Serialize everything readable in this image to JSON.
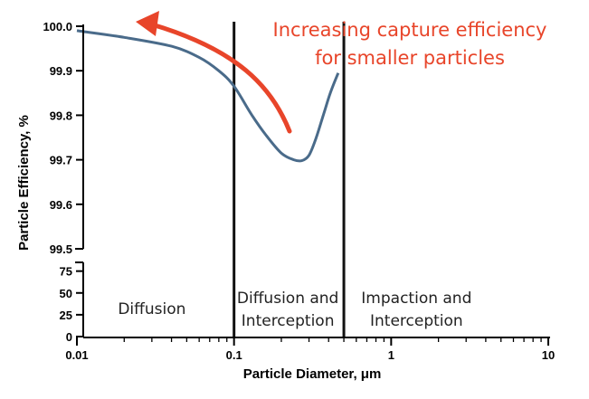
{
  "chart_data": {
    "type": "line",
    "title": "",
    "xlabel": "Particle Diameter, μm",
    "ylabel": "Particle Efficiency, %",
    "x_scale": "log",
    "xlim": [
      0.01,
      10
    ],
    "x_ticks": [
      "0.01",
      "0.1",
      "1",
      "10"
    ],
    "y_ticks_upper": [
      "99.5",
      "99.6",
      "99.7",
      "99.8",
      "99.9",
      "100.0"
    ],
    "y_ticks_lower": [
      "0",
      "25",
      "50",
      "75"
    ],
    "ylim_upper": [
      99.5,
      100.0
    ],
    "ylim_lower": [
      0,
      85
    ],
    "axis_break": true,
    "grid": false,
    "series": [
      {
        "color": "#4a6b8a",
        "x": [
          0.01,
          0.02,
          0.04,
          0.06,
          0.08,
          0.1,
          0.13,
          0.16,
          0.2,
          0.24,
          0.27,
          0.3,
          0.33,
          0.37,
          0.41,
          0.46
        ],
        "y": [
          99.99,
          99.975,
          99.955,
          99.93,
          99.9,
          99.865,
          99.8,
          99.755,
          99.715,
          99.7,
          99.698,
          99.71,
          99.745,
          99.8,
          99.85,
          99.895
        ]
      }
    ],
    "region_boundaries": [
      0.1,
      0.5
    ],
    "regions": [
      {
        "lines": [
          "Diffusion"
        ],
        "x_center": 0.03
      },
      {
        "lines": [
          "Diffusion and",
          "Interception"
        ],
        "x_center": 0.22
      },
      {
        "lines": [
          "Impaction and",
          "Interception"
        ],
        "x_center": 1.45
      }
    ],
    "annotation": {
      "lines": [
        "Increasing capture efficiency",
        "for smaller particles"
      ],
      "color": "#e8452a"
    }
  }
}
